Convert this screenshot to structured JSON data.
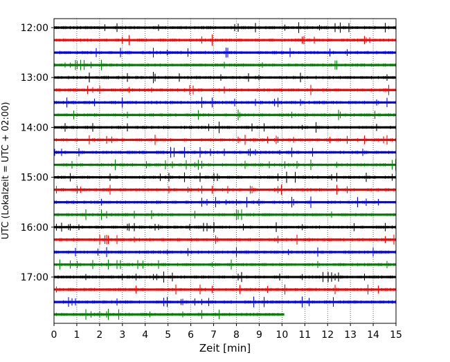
{
  "chart_data": {
    "type": "line",
    "title": "",
    "xlabel": "Zeit  [min]",
    "ylabel": "UTC (Lokalzeit = UTC + 02:00)",
    "xlim": [
      0,
      15
    ],
    "x_ticks": [
      0,
      1,
      2,
      3,
      4,
      5,
      6,
      7,
      8,
      9,
      10,
      11,
      12,
      13,
      14,
      15
    ],
    "x_tick_labels": [
      "0",
      "1",
      "2",
      "3",
      "4",
      "5",
      "6",
      "7",
      "8",
      "9",
      "10",
      "11",
      "12",
      "13",
      "14",
      "15"
    ],
    "y_tick_labels": [
      "12:00",
      "13:00",
      "14:00",
      "15:00",
      "16:00",
      "17:00"
    ],
    "grid": {
      "vertical_dotted": true
    },
    "line_colors": [
      "#000000",
      "#ff0000",
      "#0000ff",
      "#008000"
    ],
    "series": [
      {
        "start": "12:00",
        "color": "#000000",
        "x_end": 15
      },
      {
        "start": "12:15",
        "color": "#ff0000",
        "x_end": 15
      },
      {
        "start": "12:30",
        "color": "#0000ff",
        "x_end": 15
      },
      {
        "start": "12:45",
        "color": "#008000",
        "x_end": 15
      },
      {
        "start": "13:00",
        "color": "#000000",
        "x_end": 15
      },
      {
        "start": "13:15",
        "color": "#ff0000",
        "x_end": 15
      },
      {
        "start": "13:30",
        "color": "#0000ff",
        "x_end": 15
      },
      {
        "start": "13:45",
        "color": "#008000",
        "x_end": 15
      },
      {
        "start": "14:00",
        "color": "#000000",
        "x_end": 15
      },
      {
        "start": "14:15",
        "color": "#ff0000",
        "x_end": 15
      },
      {
        "start": "14:30",
        "color": "#0000ff",
        "x_end": 15
      },
      {
        "start": "14:45",
        "color": "#008000",
        "x_end": 15
      },
      {
        "start": "15:00",
        "color": "#000000",
        "x_end": 15
      },
      {
        "start": "15:15",
        "color": "#ff0000",
        "x_end": 15
      },
      {
        "start": "15:30",
        "color": "#0000ff",
        "x_end": 15
      },
      {
        "start": "15:45",
        "color": "#008000",
        "x_end": 15
      },
      {
        "start": "16:00",
        "color": "#000000",
        "x_end": 15
      },
      {
        "start": "16:15",
        "color": "#ff0000",
        "x_end": 15
      },
      {
        "start": "16:30",
        "color": "#0000ff",
        "x_end": 15
      },
      {
        "start": "16:45",
        "color": "#008000",
        "x_end": 15
      },
      {
        "start": "17:00",
        "color": "#000000",
        "x_end": 15
      },
      {
        "start": "17:15",
        "color": "#ff0000",
        "x_end": 15
      },
      {
        "start": "17:30",
        "color": "#0000ff",
        "x_end": 15
      },
      {
        "start": "17:45",
        "color": "#008000",
        "x_end": 10.1
      }
    ]
  }
}
